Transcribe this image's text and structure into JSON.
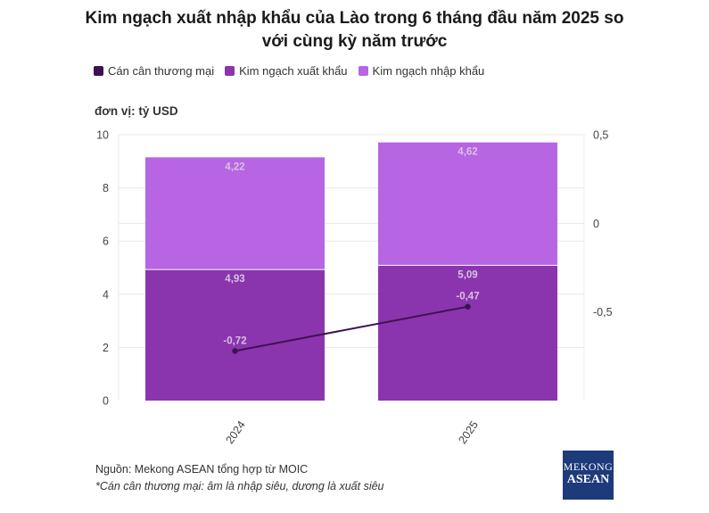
{
  "title_line1": "Kim ngạch xuất nhập khẩu của Lào trong 6 tháng đầu năm 2025 so",
  "title_line2": "với cùng kỳ năm trước",
  "unit_label": "đơn vị: tỷ USD",
  "source_line1": "Nguồn: Mekong ASEAN tổng hợp từ MOIC",
  "source_line2": "*Cán cân thương mại: âm là nhập siêu, dương là xuất siêu",
  "logo": {
    "top": "MEKONG",
    "bottom": "ASEAN"
  },
  "colors": {
    "balance": "#3f1152",
    "export": "#8a35ad",
    "import": "#b765e3",
    "grid": "#e8e8e8",
    "label": "#d7c2e2"
  },
  "chart_data": {
    "type": "bar",
    "stacked": true,
    "categories": [
      "2024",
      "2025"
    ],
    "series": [
      {
        "name": "Kim ngạch xuất khẩu",
        "values": [
          4.93,
          5.09
        ],
        "labels": [
          "4,93",
          "5,09"
        ],
        "axis": "left"
      },
      {
        "name": "Kim ngạch nhập khẩu",
        "values": [
          4.22,
          4.62
        ],
        "labels": [
          "4,22",
          "4,62"
        ],
        "axis": "left"
      },
      {
        "name": "Cán cân thương mại",
        "type": "line",
        "values": [
          -0.72,
          -0.47
        ],
        "labels": [
          "-0,72",
          "-0,47"
        ],
        "axis": "right"
      }
    ],
    "legend_order": [
      "Cán cân thương mại",
      "Kim ngạch xuất khẩu",
      "Kim ngạch nhập khẩu"
    ],
    "ylim_left": [
      0,
      10
    ],
    "yticks_left": [
      0,
      2,
      4,
      6,
      8,
      10
    ],
    "ytick_labels_left": [
      "0",
      "2",
      "4",
      "6",
      "8",
      "10"
    ],
    "ylim_right": [
      -1,
      0.5
    ],
    "yticks_right": [
      0.5,
      0,
      -0.5
    ],
    "ytick_labels_right": [
      "0,5",
      "0",
      "-0,5"
    ],
    "legend_position": "top-left",
    "grid": true
  }
}
